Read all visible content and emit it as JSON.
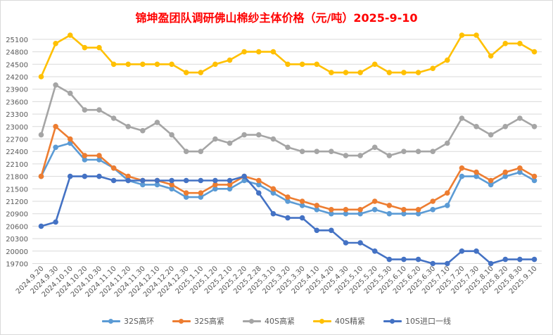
{
  "chart_data": {
    "type": "line",
    "title": "锦坤盈团队调研佛山棉纱主体价格（元/吨）2025-9-10",
    "categories": [
      "2024.9.20",
      "2024.9.30",
      "2024.10.10",
      "2024.10.20",
      "2024.10.30",
      "2024.11.10",
      "2024.11.20",
      "2024.11.30",
      "2024.12.10",
      "2024.12.20",
      "2024.12.30",
      "2025.1.10",
      "2025.1.20",
      "2025.2.10",
      "2025.2.20",
      "2025.2.28",
      "2025.3.10",
      "2025.3.20",
      "2025.3.30",
      "2025.4.10",
      "2025.4.20",
      "2025.4.30",
      "2025.5.10",
      "2025.5.20",
      "2025.5.30",
      "2025.6.10",
      "2025.6.20",
      "2025.6.30",
      "2025.7.10",
      "2025.7.20",
      "2025.7.30",
      "2025.8.10",
      "2025.8.20",
      "2025.8.30",
      "2025.9.10"
    ],
    "yticks": [
      19700,
      20000,
      20300,
      20600,
      20900,
      21200,
      21500,
      21800,
      22100,
      22400,
      22700,
      23000,
      23300,
      23600,
      23900,
      24200,
      24500,
      24800,
      25100
    ],
    "ylim": [
      19700,
      25300
    ],
    "grid": true,
    "legend_position": "bottom",
    "series": [
      {
        "name": "32S高环",
        "color": "#5b9bd5",
        "values": [
          21800,
          22500,
          22600,
          22200,
          22200,
          22000,
          21700,
          21600,
          21600,
          21500,
          21300,
          21300,
          21500,
          21500,
          21700,
          21600,
          21400,
          21200,
          21100,
          21000,
          20900,
          20900,
          20900,
          21000,
          20900,
          20900,
          20900,
          21000,
          21100,
          21800,
          21800,
          21600,
          21800,
          21900,
          21700
        ]
      },
      {
        "name": "32S高紧",
        "color": "#ed7d31",
        "values": [
          21800,
          23000,
          22700,
          22300,
          22300,
          22000,
          21800,
          21700,
          21700,
          21600,
          21400,
          21400,
          21600,
          21600,
          21800,
          21700,
          21500,
          21300,
          21200,
          21100,
          21000,
          21000,
          21000,
          21200,
          21100,
          21000,
          21000,
          21200,
          21400,
          22000,
          21900,
          21700,
          21900,
          22000,
          21800
        ]
      },
      {
        "name": "40S高紧",
        "color": "#a5a5a5",
        "values": [
          22800,
          24000,
          23800,
          23400,
          23400,
          23200,
          23000,
          22900,
          23100,
          22800,
          22400,
          22400,
          22700,
          22600,
          22800,
          22800,
          22700,
          22500,
          22400,
          22400,
          22400,
          22300,
          22300,
          22500,
          22300,
          22400,
          22400,
          22400,
          22600,
          23200,
          23000,
          22800,
          23000,
          23200,
          23000
        ]
      },
      {
        "name": "40S精紧",
        "color": "#ffc000",
        "values": [
          24200,
          25000,
          25200,
          24900,
          24900,
          24500,
          24500,
          24500,
          24500,
          24500,
          24300,
          24300,
          24500,
          24600,
          24800,
          24800,
          24800,
          24500,
          24500,
          24500,
          24300,
          24300,
          24300,
          24500,
          24300,
          24300,
          24300,
          24400,
          24600,
          25200,
          25200,
          24700,
          25000,
          25000,
          24800
        ]
      },
      {
        "name": "10S进口一线",
        "color": "#4472c4",
        "values": [
          20600,
          20700,
          21800,
          21800,
          21800,
          21700,
          21700,
          21700,
          21700,
          21700,
          21700,
          21700,
          21700,
          21700,
          21800,
          21400,
          20900,
          20800,
          20800,
          20500,
          20500,
          20200,
          20200,
          20000,
          19800,
          19800,
          19800,
          19700,
          19700,
          20000,
          20000,
          19700,
          19800,
          19800,
          19800
        ]
      }
    ]
  }
}
